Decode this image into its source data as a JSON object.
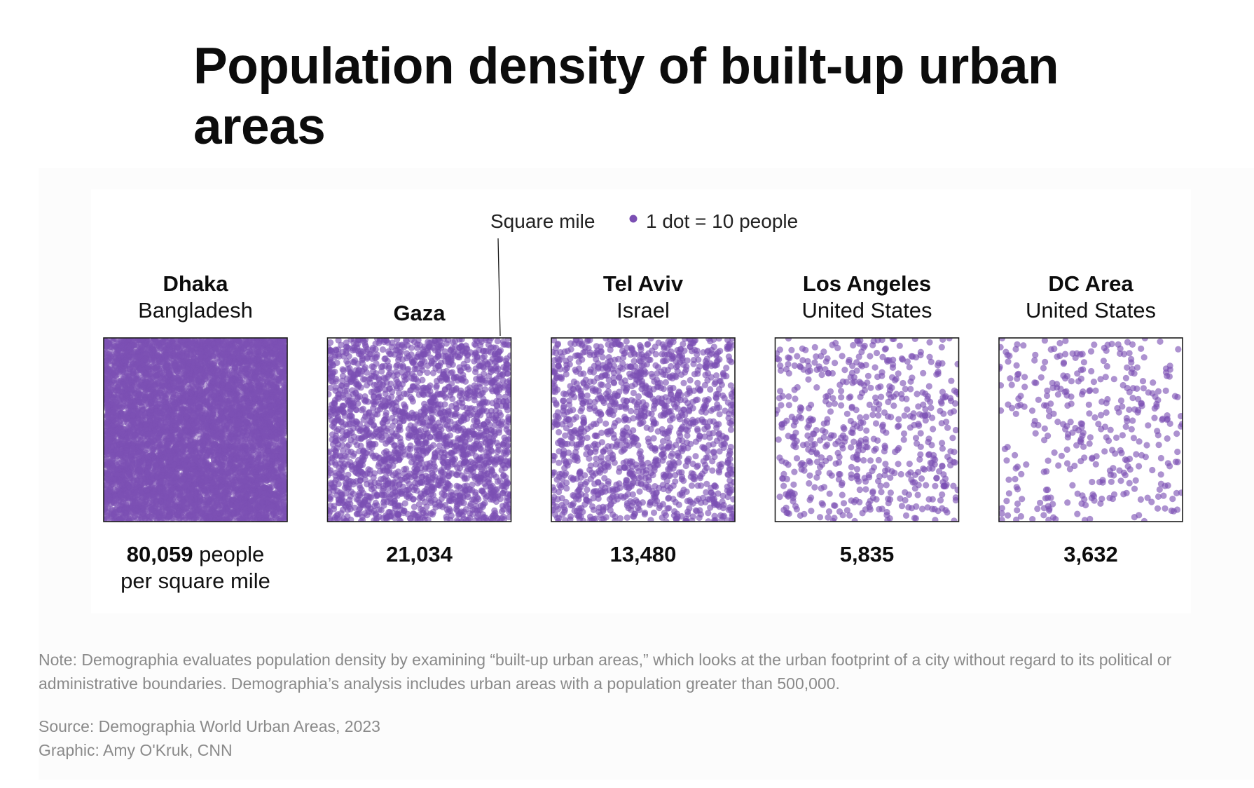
{
  "title": "Population density of built-up urban areas",
  "note": "Note: Demographia evaluates population density by examining “built-up urban areas,” which looks at the urban footprint of a city without regard to its political or administrative boundaries. Demographia’s analysis includes urban areas with a population greater than 500,000.",
  "source": "Source: Demographia World Urban Areas, 2023",
  "credit": "Graphic: Amy O'Kruk, CNN",
  "colors": {
    "dot": "#7b4fb3",
    "frame": "#1a1a1a",
    "note": "#8a8a8a"
  },
  "chart_data": {
    "type": "dot-density",
    "title": "Population density of built-up urban areas",
    "unit_label": "Square mile",
    "legend": {
      "dot_label": "1 dot = 10 people"
    },
    "density_suffix": "people",
    "density_suffix_line2": "per square mile",
    "people_per_dot": 10,
    "cities": [
      {
        "name": "Dhaka",
        "country": "Bangladesh",
        "density": 80059,
        "density_label": "80,059"
      },
      {
        "name": "Gaza",
        "country": "",
        "density": 21034,
        "density_label": "21,034"
      },
      {
        "name": "Tel Aviv",
        "country": "Israel",
        "density": 13480,
        "density_label": "13,480"
      },
      {
        "name": "Los Angeles",
        "country": "United States",
        "density": 5835,
        "density_label": "5,835"
      },
      {
        "name": "DC Area",
        "country": "United States",
        "density": 3632,
        "density_label": "3,632"
      }
    ]
  }
}
